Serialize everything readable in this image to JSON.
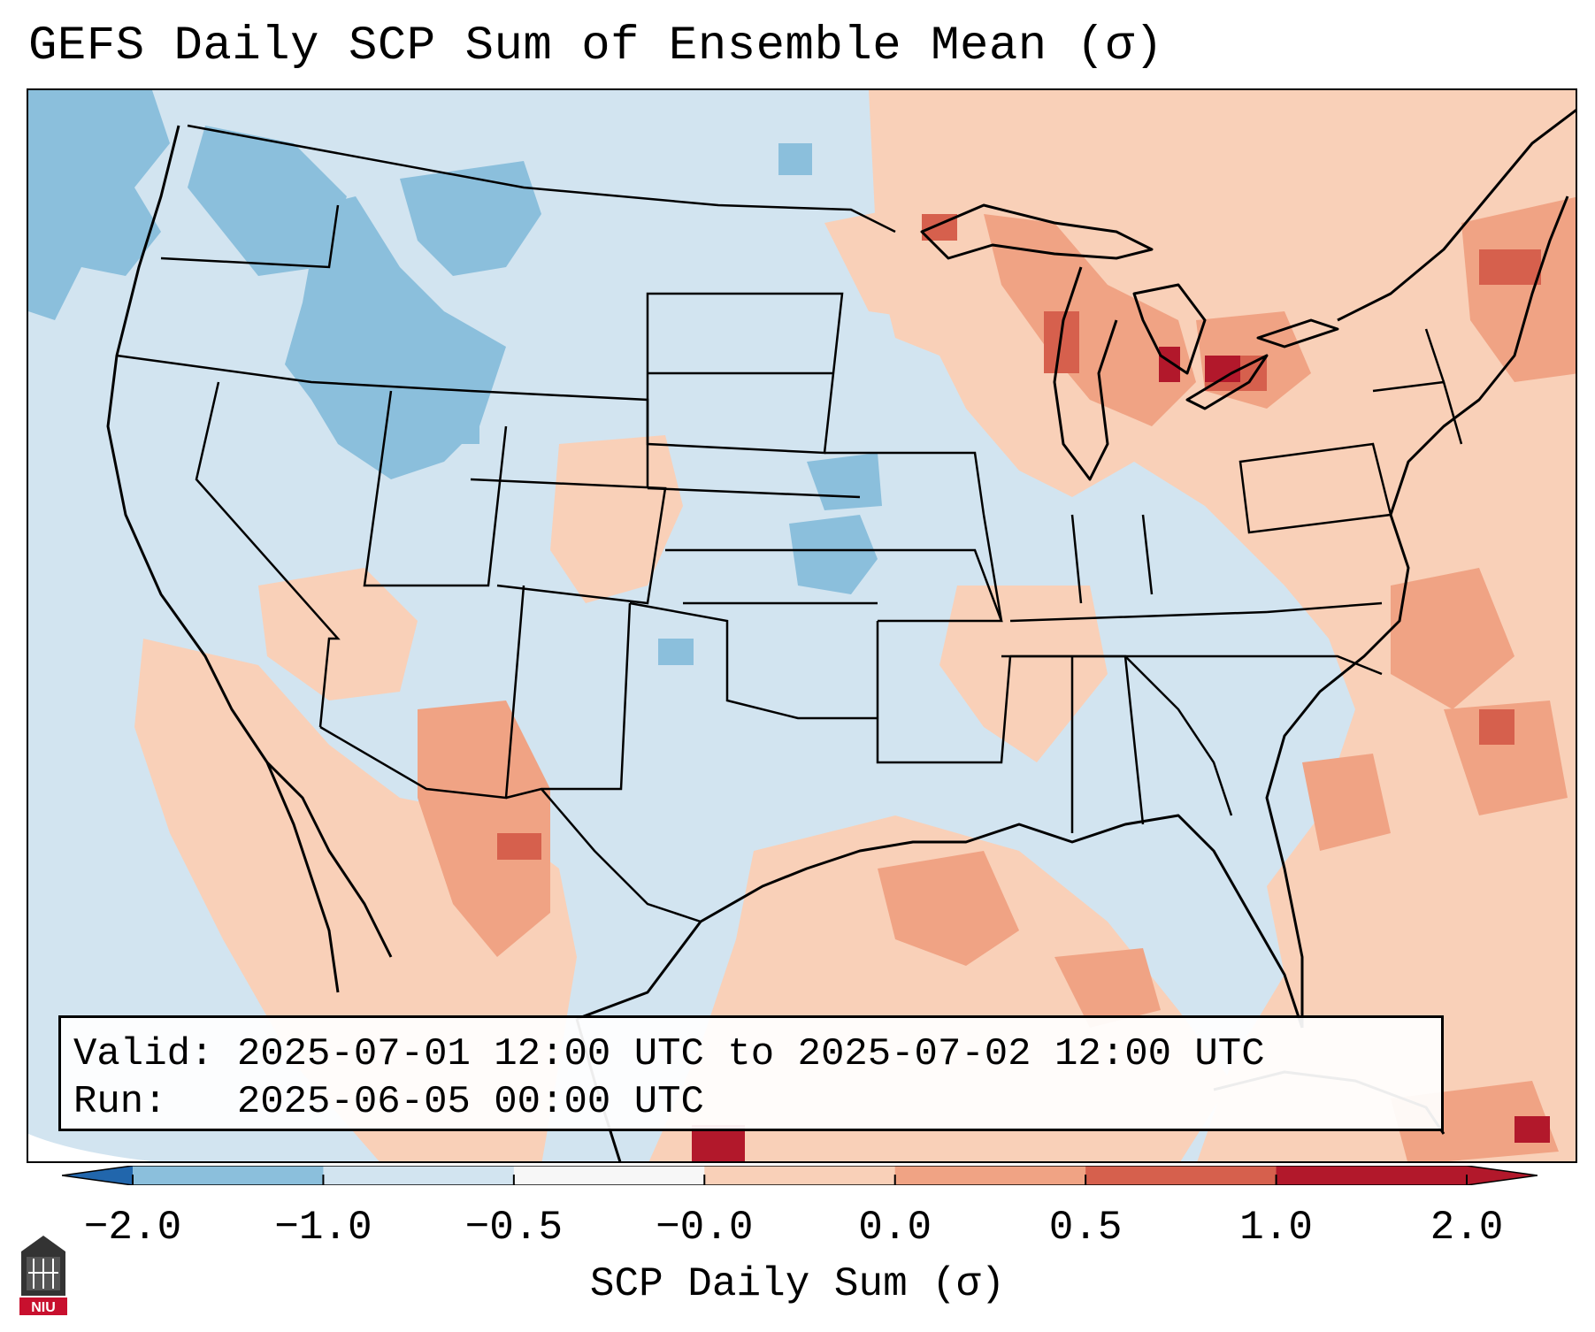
{
  "title": "GEFS Daily SCP Sum of Ensemble Mean (σ)",
  "info": {
    "valid_line": "Valid: 2025-07-01 12:00 UTC to 2025-07-02 12:00 UTC",
    "run_line": "Run:   2025-06-05 00:00 UTC"
  },
  "colorbar": {
    "label": "SCP Daily Sum (σ)",
    "ticks": [
      "−2.0",
      "−1.0",
      "−0.5",
      "−0.0",
      "0.0",
      "0.5",
      "1.0",
      "2.0"
    ],
    "colors": [
      "#3b84bd",
      "#8bbfdc",
      "#d2e4f0",
      "#f7f7f7",
      "#f9d0b8",
      "#f0a384",
      "#d6604d",
      "#b2182b"
    ],
    "extend_low_color": "#2166ac",
    "extend_high_color": "#b2182b"
  },
  "map": {
    "region": "Continental United States",
    "background_color": "#d2e4f0",
    "outside_domain_color": "#ffffff"
  },
  "logo": {
    "text": "NIU",
    "icon": "niu-logo-icon"
  }
}
